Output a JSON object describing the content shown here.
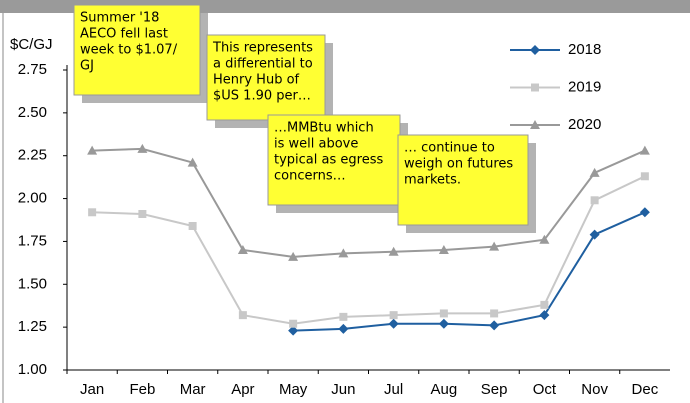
{
  "chart_data": {
    "type": "line",
    "y_label": "$C/GJ",
    "categories": [
      "Jan",
      "Feb",
      "Mar",
      "Apr",
      "May",
      "Jun",
      "Jul",
      "Aug",
      "Sep",
      "Oct",
      "Nov",
      "Dec"
    ],
    "series": [
      {
        "name": "2018",
        "color": "#1f5fa0",
        "marker": "diamond",
        "values": [
          null,
          null,
          null,
          null,
          1.23,
          1.24,
          1.27,
          1.27,
          1.26,
          1.32,
          1.79,
          1.92
        ]
      },
      {
        "name": "2019",
        "color": "#c8c8c8",
        "marker": "square",
        "values": [
          1.92,
          1.91,
          1.84,
          1.32,
          1.27,
          1.31,
          1.32,
          1.33,
          1.33,
          1.38,
          1.99,
          2.13
        ]
      },
      {
        "name": "2020",
        "color": "#999999",
        "marker": "triangle",
        "values": [
          2.28,
          2.29,
          2.21,
          1.7,
          1.66,
          1.68,
          1.69,
          1.7,
          1.72,
          1.76,
          2.15,
          2.28
        ]
      }
    ],
    "ylim": [
      1,
      2.75
    ],
    "yticks": [
      {
        "value": 1,
        "label": "1.00"
      },
      {
        "value": 1.25,
        "label": "1.25"
      },
      {
        "value": 1.5,
        "label": "1.50"
      },
      {
        "value": 1.75,
        "label": "1.75"
      },
      {
        "value": 2,
        "label": "2.00"
      },
      {
        "value": 2.25,
        "label": "2.25"
      },
      {
        "value": 2.5,
        "label": "2.50"
      },
      {
        "value": 2.75,
        "label": "2.75"
      }
    ],
    "legend": "top-right",
    "annotations": [
      {
        "lines": [
          "Summer '18",
          "AECO fell last",
          "week to $1.07/",
          "GJ"
        ]
      },
      {
        "lines": [
          "This represents",
          "a differential to",
          "Henry Hub of",
          "$US 1.90 per…"
        ]
      },
      {
        "lines": [
          "…MMBtu which",
          "is well above",
          "typical as egress",
          "concerns…"
        ]
      },
      {
        "lines": [
          "… continue to",
          "weigh on futures",
          "markets."
        ]
      }
    ]
  }
}
